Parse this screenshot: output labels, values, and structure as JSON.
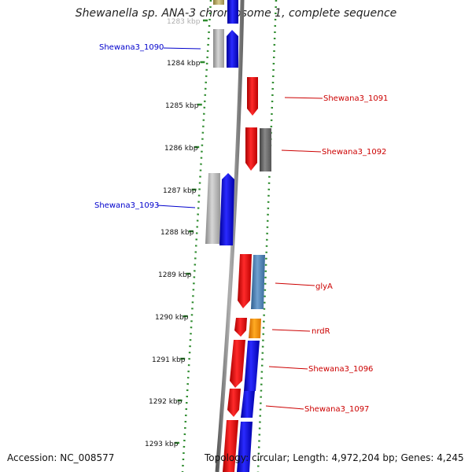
{
  "title": "Shewanella sp. ANA-3 chromosome 1, complete sequence",
  "footer": {
    "accession": "Accession: NC_008577",
    "summary": "Topology: circular; Length: 4,972,204 bp; Genes: 4,245"
  },
  "colors": {
    "forward_label": "#cc0000",
    "reverse_label": "#0000cc",
    "dotted_track": "#2e8b2e",
    "backbone": "#808080",
    "red_gene": "#ee1111",
    "blue_gene": "#1111ee",
    "gray_gene": "#aaaaaa",
    "darkgray_gene": "#666666",
    "steelblue_gene": "#4a7fb5",
    "orange_gene": "#ff8c00"
  },
  "ticks": [
    "1283 kbp",
    "1284 kbp",
    "1285 kbp",
    "1286 kbp",
    "1287 kbp",
    "1288 kbp",
    "1289 kbp",
    "1290 kbp",
    "1291 kbp",
    "1292 kbp",
    "1293 kbp"
  ],
  "labels": [
    {
      "text": "Shewana3_1090",
      "side": "left"
    },
    {
      "text": "Shewana3_1091",
      "side": "right"
    },
    {
      "text": "Shewana3_1092",
      "side": "right"
    },
    {
      "text": "Shewana3_1093",
      "side": "left"
    },
    {
      "text": "glyA",
      "side": "right"
    },
    {
      "text": "nrdR",
      "side": "right"
    },
    {
      "text": "Shewana3_1096",
      "side": "right"
    },
    {
      "text": "Shewana3_1097",
      "side": "right"
    }
  ]
}
